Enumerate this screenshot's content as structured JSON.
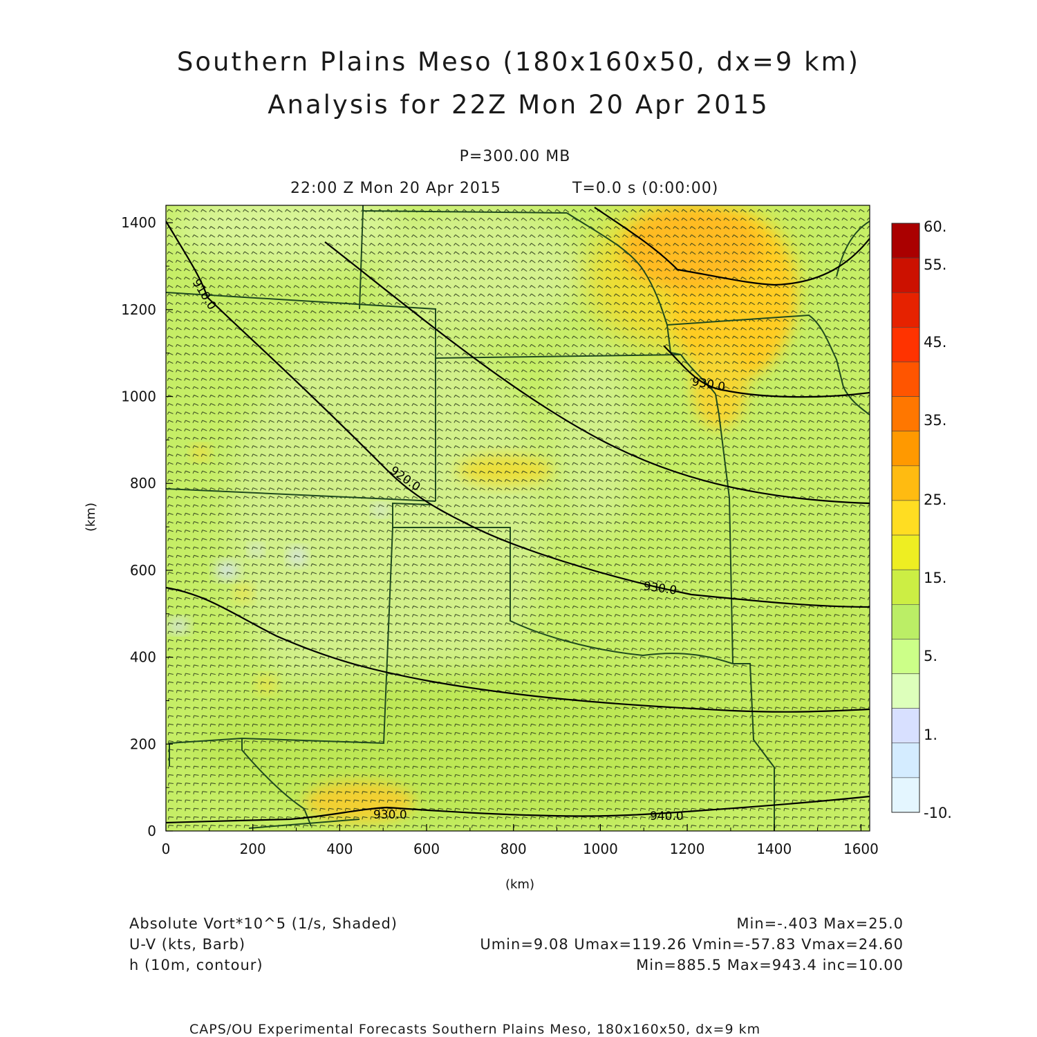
{
  "header": {
    "title_line1": "Southern Plains Meso (180x160x50, dx=9 km)",
    "title_line2": "Analysis for 22Z Mon 20 Apr 2015",
    "pressure_level": "P=300.00 MB",
    "valid_time": "22:00 Z Mon 20 Apr 2015",
    "forecast_time": "T=0.0 s (0:00:00)"
  },
  "axes": {
    "x_label": "(km)",
    "y_label": "(km)",
    "x_ticks": [
      "0",
      "200",
      "400",
      "600",
      "800",
      "1000",
      "1200",
      "1400",
      "1600"
    ],
    "y_ticks": [
      "0",
      "200",
      "400",
      "600",
      "800",
      "1000",
      "1200",
      "1400"
    ],
    "x_range": [
      0,
      1620
    ],
    "y_range": [
      0,
      1440
    ]
  },
  "colorbar": {
    "labels": [
      "60.",
      "55.",
      "45.",
      "35.",
      "25.",
      "15.",
      "5.",
      "1.",
      "-10."
    ],
    "colors": [
      "#aa0000",
      "#cc1100",
      "#e62200",
      "#ff3300",
      "#ff5500",
      "#ff7700",
      "#ff9900",
      "#ffbb11",
      "#ffdd22",
      "#eeee22",
      "#ccee44",
      "#bbee66",
      "#ccff88",
      "#ddffbb",
      "#d8e0ff",
      "#d4ecff",
      "#e4f6ff"
    ]
  },
  "contours": {
    "labels": [
      "910.0",
      "920.0",
      "930.0",
      "940.0",
      "930.0",
      "920.0",
      "930.0"
    ],
    "color": "#000000"
  },
  "field_info": {
    "shaded_label": "Absolute Vort*10^5 (1/s, Shaded)",
    "shaded_stats": "Min=-.403 Max=25.0",
    "barb_label": "U-V (kts, Barb)",
    "barb_stats": "Umin=9.08 Umax=119.26 Vmin=-57.83 Vmax=24.60",
    "contour_label": "h (10m, contour)",
    "contour_stats": "Min=885.5 Max=943.4 inc=10.00"
  },
  "footer": {
    "credit": "CAPS/OU Experimental Forecasts  Southern Plains Meso, 180x160x50, dx=9 km"
  }
}
